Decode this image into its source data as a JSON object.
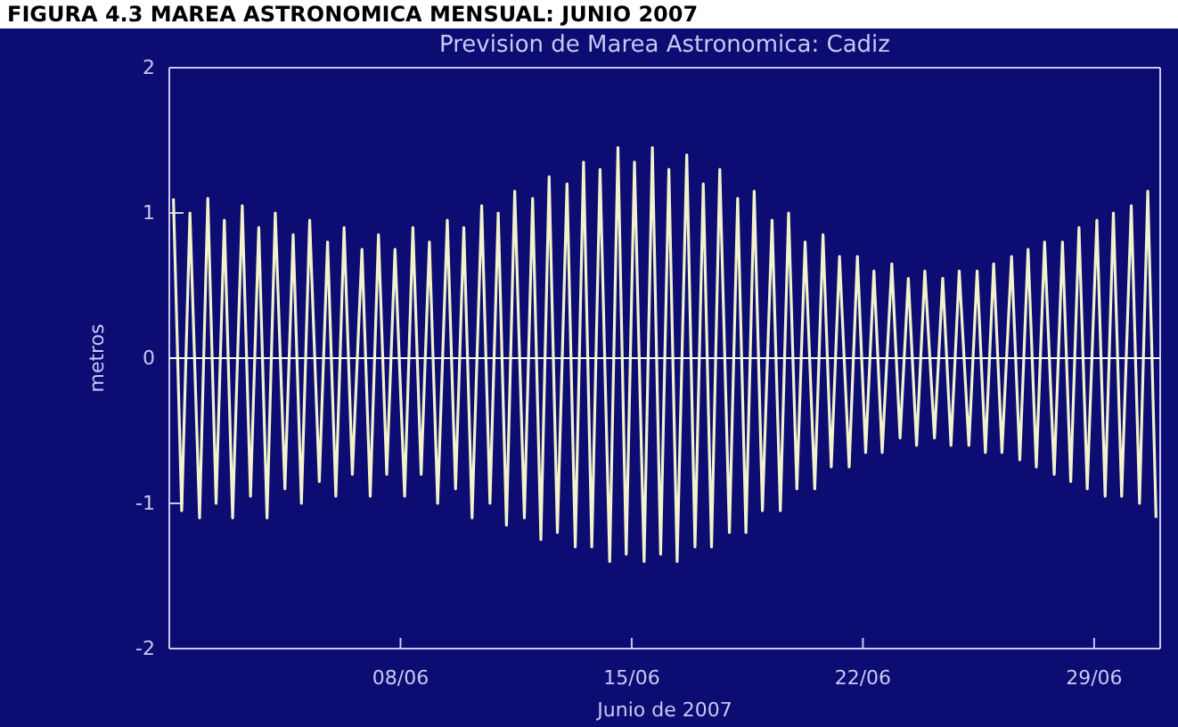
{
  "chart_data": {
    "type": "line",
    "title": "Prevision de Marea Astronomica: Cadiz",
    "xlabel": "Junio de 2007",
    "ylabel": "metros",
    "annotations": [
      "FIGURA 4.3 MAREA ASTRONOMICA MENSUAL: JUNIO 2007"
    ],
    "xlim": [
      "2007-06-01T00:00",
      "2007-07-01T00:00"
    ],
    "xticks": [
      {
        "value": "2007-06-08",
        "label": "08/06"
      },
      {
        "value": "2007-06-15",
        "label": "15/06"
      },
      {
        "value": "2007-06-22",
        "label": "22/06"
      },
      {
        "value": "2007-06-29",
        "label": "29/06"
      }
    ],
    "ylim": [
      -2,
      2
    ],
    "yticks": [
      -2,
      -1,
      0,
      1,
      2
    ],
    "ref_lines": [
      {
        "axis": "y",
        "value": 0,
        "color": "#ffffff"
      }
    ],
    "x": [
      "2007-06-01T03:00",
      "2007-06-01T09:00",
      "2007-06-01T15:00",
      "2007-06-01T22:00",
      "2007-06-02T04:00",
      "2007-06-02T10:00",
      "2007-06-02T16:00",
      "2007-06-02T22:00",
      "2007-06-03T05:00",
      "2007-06-03T11:00",
      "2007-06-03T17:00",
      "2007-06-03T23:00",
      "2007-06-04T05:00",
      "2007-06-04T12:00",
      "2007-06-04T18:00",
      "2007-06-05T00:00",
      "2007-06-05T06:00",
      "2007-06-05T13:00",
      "2007-06-05T19:00",
      "2007-06-06T01:00",
      "2007-06-06T07:00",
      "2007-06-06T13:00",
      "2007-06-06T20:00",
      "2007-06-07T02:00",
      "2007-06-07T08:00",
      "2007-06-07T14:00",
      "2007-06-07T20:00",
      "2007-06-08T03:00",
      "2007-06-08T09:00",
      "2007-06-08T15:00",
      "2007-06-08T21:00",
      "2007-06-09T03:00",
      "2007-06-09T10:00",
      "2007-06-09T16:00",
      "2007-06-09T22:00",
      "2007-06-10T04:00",
      "2007-06-10T11:00",
      "2007-06-10T17:00",
      "2007-06-10T23:00",
      "2007-06-11T05:00",
      "2007-06-11T11:00",
      "2007-06-11T18:00",
      "2007-06-12T00:00",
      "2007-06-12T06:00",
      "2007-06-12T12:00",
      "2007-06-12T18:00",
      "2007-06-13T01:00",
      "2007-06-13T07:00",
      "2007-06-13T13:00",
      "2007-06-13T19:00",
      "2007-06-14T01:00",
      "2007-06-14T08:00",
      "2007-06-14T14:00",
      "2007-06-14T20:00",
      "2007-06-15T02:00",
      "2007-06-15T09:00",
      "2007-06-15T15:00",
      "2007-06-15T21:00",
      "2007-06-16T03:00",
      "2007-06-16T09:00",
      "2007-06-16T16:00",
      "2007-06-16T22:00",
      "2007-06-17T04:00",
      "2007-06-17T10:00",
      "2007-06-17T16:00",
      "2007-06-17T23:00",
      "2007-06-18T05:00",
      "2007-06-18T11:00",
      "2007-06-18T17:00",
      "2007-06-18T23:00",
      "2007-06-19T06:00",
      "2007-06-19T12:00",
      "2007-06-19T18:00",
      "2007-06-20T00:00",
      "2007-06-20T06:00",
      "2007-06-20T13:00",
      "2007-06-20T19:00",
      "2007-06-21T01:00",
      "2007-06-21T07:00",
      "2007-06-21T14:00",
      "2007-06-21T20:00",
      "2007-06-22T02:00",
      "2007-06-22T08:00",
      "2007-06-22T14:00",
      "2007-06-22T21:00",
      "2007-06-23T03:00",
      "2007-06-23T09:00",
      "2007-06-23T15:00",
      "2007-06-23T21:00",
      "2007-06-24T04:00",
      "2007-06-24T10:00",
      "2007-06-24T16:00",
      "2007-06-24T22:00",
      "2007-06-25T05:00",
      "2007-06-25T11:00",
      "2007-06-25T17:00",
      "2007-06-25T23:00",
      "2007-06-26T05:00",
      "2007-06-26T12:00",
      "2007-06-26T18:00",
      "2007-06-27T00:00",
      "2007-06-27T06:00",
      "2007-06-27T12:00",
      "2007-06-27T19:00",
      "2007-06-28T01:00",
      "2007-06-28T07:00",
      "2007-06-28T13:00",
      "2007-06-28T19:00",
      "2007-06-29T02:00",
      "2007-06-29T08:00",
      "2007-06-29T14:00",
      "2007-06-29T20:00",
      "2007-06-30T03:00",
      "2007-06-30T09:00",
      "2007-06-30T15:00",
      "2007-06-30T21:00"
    ],
    "series": [
      {
        "color": "#f2f2cc",
        "values": [
          1.1,
          -1.05,
          1.0,
          -1.1,
          1.1,
          -1.0,
          0.95,
          -1.1,
          1.05,
          -0.95,
          0.9,
          -1.1,
          1.0,
          -0.9,
          0.85,
          -1.0,
          0.95,
          -0.85,
          0.8,
          -0.95,
          0.9,
          -0.8,
          0.75,
          -0.95,
          0.85,
          -0.8,
          0.75,
          -0.95,
          0.9,
          -0.8,
          0.8,
          -1.0,
          0.95,
          -0.9,
          0.9,
          -1.1,
          1.05,
          -1.0,
          1.0,
          -1.15,
          1.15,
          -1.1,
          1.1,
          -1.25,
          1.25,
          -1.2,
          1.2,
          -1.3,
          1.35,
          -1.3,
          1.3,
          -1.4,
          1.45,
          -1.35,
          1.35,
          -1.4,
          1.45,
          -1.35,
          1.3,
          -1.4,
          1.4,
          -1.3,
          1.2,
          -1.3,
          1.3,
          -1.2,
          1.1,
          -1.2,
          1.15,
          -1.05,
          0.95,
          -1.05,
          1.0,
          -0.9,
          0.8,
          -0.9,
          0.85,
          -0.75,
          0.7,
          -0.75,
          0.7,
          -0.65,
          0.6,
          -0.65,
          0.65,
          -0.55,
          0.55,
          -0.6,
          0.6,
          -0.55,
          0.55,
          -0.6,
          0.6,
          -0.6,
          0.6,
          -0.65,
          0.65,
          -0.65,
          0.7,
          -0.7,
          0.75,
          -0.75,
          0.8,
          -0.8,
          0.8,
          -0.85,
          0.9,
          -0.9,
          0.95,
          -0.95,
          1.0,
          -0.95,
          1.05,
          -1.0,
          1.15,
          -1.1
        ]
      }
    ]
  }
}
